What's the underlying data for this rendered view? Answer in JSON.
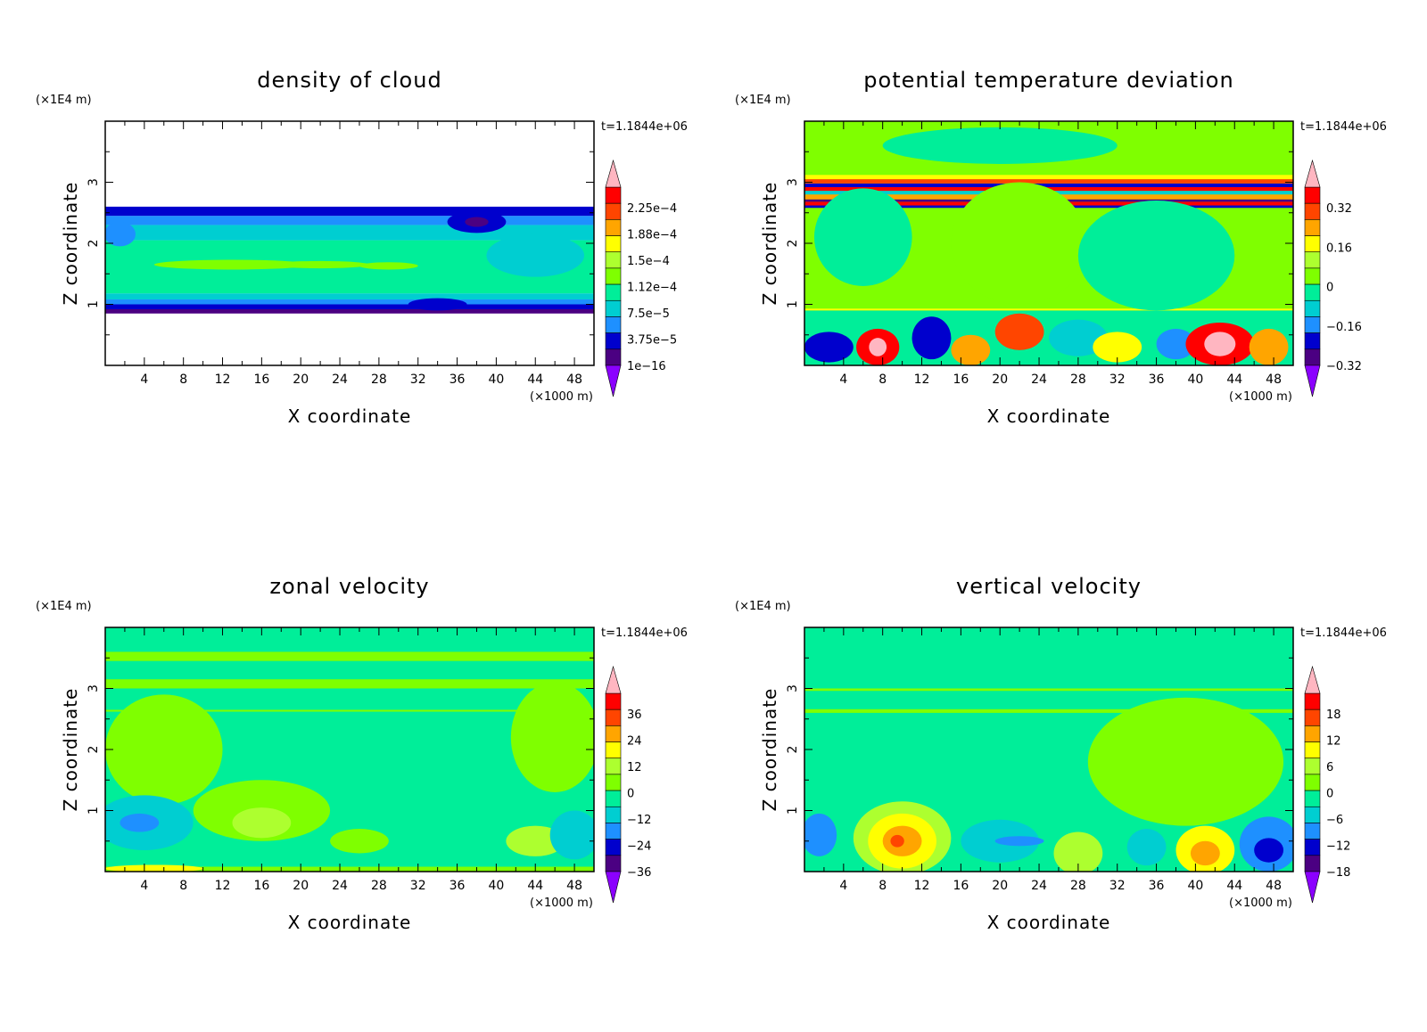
{
  "chart_data": [
    {
      "type": "heatmap",
      "title": "density of cloud",
      "xlabel": "X coordinate",
      "ylabel": "Z coordinate",
      "x_unit": "(×1000 m)",
      "y_unit": "(×1E4 m)",
      "time_label": "t=1.1844e+06",
      "xlim": [
        0,
        50
      ],
      "ylim": [
        0,
        4
      ],
      "x_ticks": [
        4,
        8,
        12,
        16,
        20,
        24,
        28,
        32,
        36,
        40,
        44,
        48
      ],
      "y_ticks": [
        1,
        2,
        3
      ],
      "colorbar_labels": [
        "2.25e-4",
        "1.88e-4",
        "1.5e-4",
        "1.12e-4",
        "7.5e-5",
        "3.75e-5",
        "1e-16"
      ],
      "background": "#ffffff",
      "bands": [
        {
          "z": [
            0.85,
            0.92
          ],
          "color": "#4b0082"
        },
        {
          "z": [
            0.92,
            1.0
          ],
          "color": "#0000cd"
        },
        {
          "z": [
            1.0,
            1.08
          ],
          "color": "#1e90ff"
        },
        {
          "z": [
            1.08,
            1.18
          ],
          "color": "#00ced1"
        },
        {
          "z": [
            1.18,
            2.05
          ],
          "color": "#00ee99"
        },
        {
          "z": [
            2.05,
            2.3
          ],
          "color": "#00ced1"
        },
        {
          "z": [
            2.3,
            2.45
          ],
          "color": "#1e90ff"
        },
        {
          "z": [
            2.45,
            2.6
          ],
          "color": "#0000cd"
        }
      ],
      "features": [
        {
          "cx": 13,
          "cz": 1.65,
          "rx": 8,
          "rz": 0.08,
          "color": "#7fff00"
        },
        {
          "cx": 22,
          "cz": 1.65,
          "rx": 5,
          "rz": 0.06,
          "color": "#7fff00"
        },
        {
          "cx": 29,
          "cz": 1.63,
          "rx": 3,
          "rz": 0.06,
          "color": "#7fff00"
        },
        {
          "cx": 38,
          "cz": 2.35,
          "rx": 3,
          "rz": 0.18,
          "color": "#0000cd"
        },
        {
          "cx": 38,
          "cz": 2.35,
          "rx": 1.2,
          "rz": 0.08,
          "color": "#4b0082"
        },
        {
          "cx": 44,
          "cz": 1.8,
          "rx": 5,
          "rz": 0.35,
          "color": "#00ced1"
        },
        {
          "cx": 1.5,
          "cz": 2.15,
          "rx": 1.6,
          "rz": 0.2,
          "color": "#1e90ff"
        },
        {
          "cx": 34,
          "cz": 1.0,
          "rx": 3,
          "rz": 0.1,
          "color": "#0000cd"
        }
      ]
    },
    {
      "type": "heatmap",
      "title": "potential temperature deviation",
      "xlabel": "X coordinate",
      "ylabel": "Z coordinate",
      "x_unit": "(×1000 m)",
      "y_unit": "(×1E4 m)",
      "time_label": "t=1.1844e+06",
      "xlim": [
        0,
        50
      ],
      "ylim": [
        0,
        4
      ],
      "x_ticks": [
        4,
        8,
        12,
        16,
        20,
        24,
        28,
        32,
        36,
        40,
        44,
        48
      ],
      "y_ticks": [
        1,
        2,
        3
      ],
      "colorbar_labels": [
        "0.32",
        "0.16",
        "0",
        "-0.16",
        "-0.32"
      ],
      "background": "#7fff00",
      "bands": [
        {
          "z": [
            0.0,
            0.9
          ],
          "color": "#00ee99"
        },
        {
          "z": [
            0.9,
            0.93
          ],
          "color": "#ffff00"
        },
        {
          "z": [
            2.58,
            2.62
          ],
          "color": "#0000cd"
        },
        {
          "z": [
            2.62,
            2.68
          ],
          "color": "#ff0000"
        },
        {
          "z": [
            2.68,
            2.72
          ],
          "color": "#4b0082"
        },
        {
          "z": [
            2.72,
            2.8
          ],
          "color": "#ffa500"
        },
        {
          "z": [
            2.8,
            2.86
          ],
          "color": "#00ced1"
        },
        {
          "z": [
            2.86,
            2.92
          ],
          "color": "#ff0000"
        },
        {
          "z": [
            2.92,
            2.98
          ],
          "color": "#0000cd"
        },
        {
          "z": [
            2.98,
            3.05
          ],
          "color": "#ff4500"
        },
        {
          "z": [
            3.05,
            3.12
          ],
          "color": "#ffff00"
        }
      ],
      "features": [
        {
          "cx": 6,
          "cz": 2.1,
          "rx": 5,
          "rz": 0.8,
          "color": "#00ee99"
        },
        {
          "cx": 22,
          "cz": 2.0,
          "rx": 7,
          "rz": 1.0,
          "color": "#7fff00"
        },
        {
          "cx": 36,
          "cz": 1.8,
          "rx": 8,
          "rz": 0.9,
          "color": "#00ee99"
        },
        {
          "cx": 20,
          "cz": 3.6,
          "rx": 12,
          "rz": 0.3,
          "color": "#00ee99"
        },
        {
          "cx": 2.5,
          "cz": 0.3,
          "rx": 2.5,
          "rz": 0.25,
          "color": "#0000cd"
        },
        {
          "cx": 7.5,
          "cz": 0.3,
          "rx": 2.2,
          "rz": 0.3,
          "color": "#ff0000"
        },
        {
          "cx": 7.5,
          "cz": 0.3,
          "rx": 0.9,
          "rz": 0.15,
          "color": "#ffb6c1"
        },
        {
          "cx": 13,
          "cz": 0.45,
          "rx": 2,
          "rz": 0.35,
          "color": "#0000cd"
        },
        {
          "cx": 17,
          "cz": 0.25,
          "rx": 2,
          "rz": 0.25,
          "color": "#ffa500"
        },
        {
          "cx": 22,
          "cz": 0.55,
          "rx": 2.5,
          "rz": 0.3,
          "color": "#ff4500"
        },
        {
          "cx": 28,
          "cz": 0.45,
          "rx": 3,
          "rz": 0.3,
          "color": "#00ced1"
        },
        {
          "cx": 32,
          "cz": 0.3,
          "rx": 2.5,
          "rz": 0.25,
          "color": "#ffff00"
        },
        {
          "cx": 38,
          "cz": 0.35,
          "rx": 2,
          "rz": 0.25,
          "color": "#1e90ff"
        },
        {
          "cx": 42.5,
          "cz": 0.35,
          "rx": 3.5,
          "rz": 0.35,
          "color": "#ff0000"
        },
        {
          "cx": 42.5,
          "cz": 0.35,
          "rx": 1.6,
          "rz": 0.2,
          "color": "#ffb6c1"
        },
        {
          "cx": 47.5,
          "cz": 0.3,
          "rx": 2,
          "rz": 0.3,
          "color": "#ffa500"
        }
      ]
    },
    {
      "type": "heatmap",
      "title": "zonal velocity",
      "xlabel": "X coordinate",
      "ylabel": "Z coordinate",
      "x_unit": "(×1000 m)",
      "y_unit": "(×1E4 m)",
      "time_label": "t=1.1844e+06",
      "xlim": [
        0,
        50
      ],
      "ylim": [
        0,
        4
      ],
      "x_ticks": [
        4,
        8,
        12,
        16,
        20,
        24,
        28,
        32,
        36,
        40,
        44,
        48
      ],
      "y_ticks": [
        1,
        2,
        3
      ],
      "colorbar_labels": [
        "36",
        "24",
        "12",
        "0",
        "-12",
        "-24",
        "-36"
      ],
      "background": "#00ee99",
      "bands": [
        {
          "z": [
            3.0,
            3.15
          ],
          "color": "#7fff00"
        },
        {
          "z": [
            3.45,
            3.6
          ],
          "color": "#7fff00"
        },
        {
          "z": [
            2.62,
            2.65
          ],
          "color": "#7fff00"
        },
        {
          "z": [
            0.0,
            0.08
          ],
          "color": "#7fff00"
        }
      ],
      "features": [
        {
          "cx": 6,
          "cz": 2.0,
          "rx": 6,
          "rz": 0.9,
          "color": "#7fff00"
        },
        {
          "cx": 46,
          "cz": 2.2,
          "rx": 4.5,
          "rz": 0.9,
          "color": "#7fff00"
        },
        {
          "cx": 4,
          "cz": 0.8,
          "rx": 5,
          "rz": 0.45,
          "color": "#00ced1"
        },
        {
          "cx": 3.5,
          "cz": 0.8,
          "rx": 2,
          "rz": 0.15,
          "color": "#1e90ff"
        },
        {
          "cx": 16,
          "cz": 1.0,
          "rx": 7,
          "rz": 0.5,
          "color": "#7fff00"
        },
        {
          "cx": 16,
          "cz": 0.8,
          "rx": 3,
          "rz": 0.25,
          "color": "#adff2f"
        },
        {
          "cx": 26,
          "cz": 0.5,
          "rx": 3,
          "rz": 0.2,
          "color": "#7fff00"
        },
        {
          "cx": 44,
          "cz": 0.5,
          "rx": 3,
          "rz": 0.25,
          "color": "#adff2f"
        },
        {
          "cx": 48,
          "cz": 0.6,
          "rx": 2.5,
          "rz": 0.4,
          "color": "#00ced1"
        },
        {
          "cx": 5,
          "cz": 0.05,
          "rx": 5,
          "rz": 0.06,
          "color": "#ffff00"
        }
      ]
    },
    {
      "type": "heatmap",
      "title": "vertical velocity",
      "xlabel": "X coordinate",
      "ylabel": "Z coordinate",
      "x_unit": "(×1000 m)",
      "y_unit": "(×1E4 m)",
      "time_label": "t=1.1844e+06",
      "xlim": [
        0,
        50
      ],
      "ylim": [
        0,
        4
      ],
      "x_ticks": [
        4,
        8,
        12,
        16,
        20,
        24,
        28,
        32,
        36,
        40,
        44,
        48
      ],
      "y_ticks": [
        1,
        2,
        3
      ],
      "colorbar_labels": [
        "18",
        "12",
        "6",
        "0",
        "-6",
        "-12",
        "-18"
      ],
      "background": "#00ee99",
      "bands": [
        {
          "z": [
            2.6,
            2.66
          ],
          "color": "#7fff00"
        },
        {
          "z": [
            2.96,
            3.0
          ],
          "color": "#7fff00"
        }
      ],
      "features": [
        {
          "cx": 39,
          "cz": 1.8,
          "rx": 10,
          "rz": 1.05,
          "color": "#7fff00"
        },
        {
          "cx": 10,
          "cz": 0.55,
          "rx": 5,
          "rz": 0.6,
          "color": "#adff2f"
        },
        {
          "cx": 10,
          "cz": 0.5,
          "rx": 3.5,
          "rz": 0.45,
          "color": "#ffff00"
        },
        {
          "cx": 10,
          "cz": 0.5,
          "rx": 2,
          "rz": 0.25,
          "color": "#ffa500"
        },
        {
          "cx": 9.5,
          "cz": 0.5,
          "rx": 0.7,
          "rz": 0.1,
          "color": "#ff4500"
        },
        {
          "cx": 1.5,
          "cz": 0.6,
          "rx": 1.8,
          "rz": 0.35,
          "color": "#1e90ff"
        },
        {
          "cx": 20,
          "cz": 0.5,
          "rx": 4,
          "rz": 0.35,
          "color": "#00ced1"
        },
        {
          "cx": 22,
          "cz": 0.5,
          "rx": 2.5,
          "rz": 0.08,
          "color": "#1e90ff"
        },
        {
          "cx": 28,
          "cz": 0.3,
          "rx": 2.5,
          "rz": 0.35,
          "color": "#adff2f"
        },
        {
          "cx": 41,
          "cz": 0.35,
          "rx": 3,
          "rz": 0.4,
          "color": "#ffff00"
        },
        {
          "cx": 41,
          "cz": 0.3,
          "rx": 1.5,
          "rz": 0.2,
          "color": "#ffa500"
        },
        {
          "cx": 47.5,
          "cz": 0.45,
          "rx": 3,
          "rz": 0.45,
          "color": "#1e90ff"
        },
        {
          "cx": 47.5,
          "cz": 0.35,
          "rx": 1.5,
          "rz": 0.2,
          "color": "#0000cd"
        },
        {
          "cx": 35,
          "cz": 0.4,
          "rx": 2,
          "rz": 0.3,
          "color": "#00ced1"
        }
      ]
    }
  ],
  "colormap": [
    "#8b00ff",
    "#4b0082",
    "#0000cd",
    "#1e90ff",
    "#00ced1",
    "#00ee99",
    "#7fff00",
    "#adff2f",
    "#ffff00",
    "#ffa500",
    "#ff4500",
    "#ff0000",
    "#ffb6c1"
  ]
}
